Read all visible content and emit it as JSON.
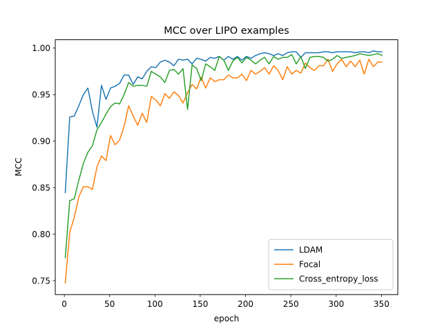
{
  "chart_data": {
    "type": "line",
    "title": "MCC over LIPO examples",
    "xlabel": "epoch",
    "ylabel": "MCC",
    "xlim": [
      -10,
      368
    ],
    "ylim": [
      0.735,
      1.009
    ],
    "xticks": [
      0,
      50,
      100,
      150,
      200,
      250,
      300,
      350
    ],
    "yticks": [
      0.75,
      0.8,
      0.85,
      0.9,
      0.95,
      1.0
    ],
    "ytick_labels": [
      "0.75",
      "0.80",
      "0.85",
      "0.90",
      "0.95",
      "1.00"
    ],
    "grid": false,
    "legend_position": "lower-right",
    "x": [
      1,
      6,
      11,
      16,
      21,
      26,
      31,
      36,
      41,
      46,
      51,
      56,
      61,
      66,
      71,
      76,
      81,
      86,
      91,
      96,
      101,
      106,
      111,
      116,
      121,
      126,
      131,
      136,
      141,
      146,
      151,
      156,
      161,
      166,
      171,
      176,
      181,
      186,
      191,
      196,
      201,
      206,
      211,
      216,
      221,
      226,
      231,
      236,
      241,
      246,
      251,
      256,
      261,
      266,
      271,
      276,
      281,
      286,
      291,
      296,
      301,
      306,
      311,
      316,
      321,
      326,
      331,
      336,
      341,
      346,
      351
    ],
    "series": [
      {
        "name": "LDAM",
        "color": "#1f77b4",
        "values": [
          0.844,
          0.926,
          0.927,
          0.938,
          0.95,
          0.957,
          0.932,
          0.915,
          0.96,
          0.945,
          0.957,
          0.959,
          0.962,
          0.971,
          0.971,
          0.961,
          0.969,
          0.967,
          0.975,
          0.98,
          0.979,
          0.985,
          0.987,
          0.985,
          0.981,
          0.988,
          0.987,
          0.988,
          0.983,
          0.989,
          0.988,
          0.986,
          0.99,
          0.989,
          0.991,
          0.987,
          0.991,
          0.988,
          0.991,
          0.987,
          0.991,
          0.989,
          0.992,
          0.994,
          0.995,
          0.994,
          0.992,
          0.994,
          0.992,
          0.995,
          0.996,
          0.996,
          0.99,
          0.995,
          0.995,
          0.995,
          0.995,
          0.996,
          0.996,
          0.995,
          0.996,
          0.996,
          0.996,
          0.996,
          0.995,
          0.996,
          0.996,
          0.995,
          0.997,
          0.996,
          0.996
        ]
      },
      {
        "name": "Focal",
        "color": "#ff7f0e",
        "values": [
          0.747,
          0.802,
          0.818,
          0.84,
          0.851,
          0.851,
          0.848,
          0.872,
          0.884,
          0.879,
          0.906,
          0.896,
          0.901,
          0.916,
          0.938,
          0.927,
          0.917,
          0.93,
          0.92,
          0.948,
          0.944,
          0.938,
          0.951,
          0.946,
          0.953,
          0.949,
          0.941,
          0.952,
          0.961,
          0.956,
          0.969,
          0.957,
          0.968,
          0.964,
          0.966,
          0.966,
          0.971,
          0.968,
          0.968,
          0.972,
          0.965,
          0.976,
          0.972,
          0.975,
          0.979,
          0.972,
          0.981,
          0.976,
          0.966,
          0.98,
          0.972,
          0.976,
          0.973,
          0.984,
          0.979,
          0.976,
          0.981,
          0.981,
          0.988,
          0.975,
          0.983,
          0.988,
          0.98,
          0.986,
          0.98,
          0.987,
          0.972,
          0.988,
          0.98,
          0.985,
          0.985
        ]
      },
      {
        "name": "Cross_entropy_loss",
        "color": "#2ca02c",
        "values": [
          0.774,
          0.836,
          0.838,
          0.858,
          0.876,
          0.888,
          0.895,
          0.912,
          0.92,
          0.929,
          0.937,
          0.941,
          0.94,
          0.95,
          0.963,
          0.959,
          0.96,
          0.96,
          0.959,
          0.975,
          0.972,
          0.969,
          0.963,
          0.976,
          0.977,
          0.972,
          0.978,
          0.934,
          0.982,
          0.978,
          0.965,
          0.983,
          0.98,
          0.976,
          0.991,
          0.987,
          0.976,
          0.986,
          0.99,
          0.984,
          0.99,
          0.987,
          0.983,
          0.987,
          0.99,
          0.983,
          0.991,
          0.988,
          0.99,
          0.99,
          0.993,
          0.983,
          0.991,
          0.978,
          0.99,
          0.991,
          0.991,
          0.99,
          0.986,
          0.988,
          0.992,
          0.989,
          0.99,
          0.991,
          0.992,
          0.994,
          0.993,
          0.992,
          0.993,
          0.994,
          0.992
        ]
      }
    ]
  }
}
